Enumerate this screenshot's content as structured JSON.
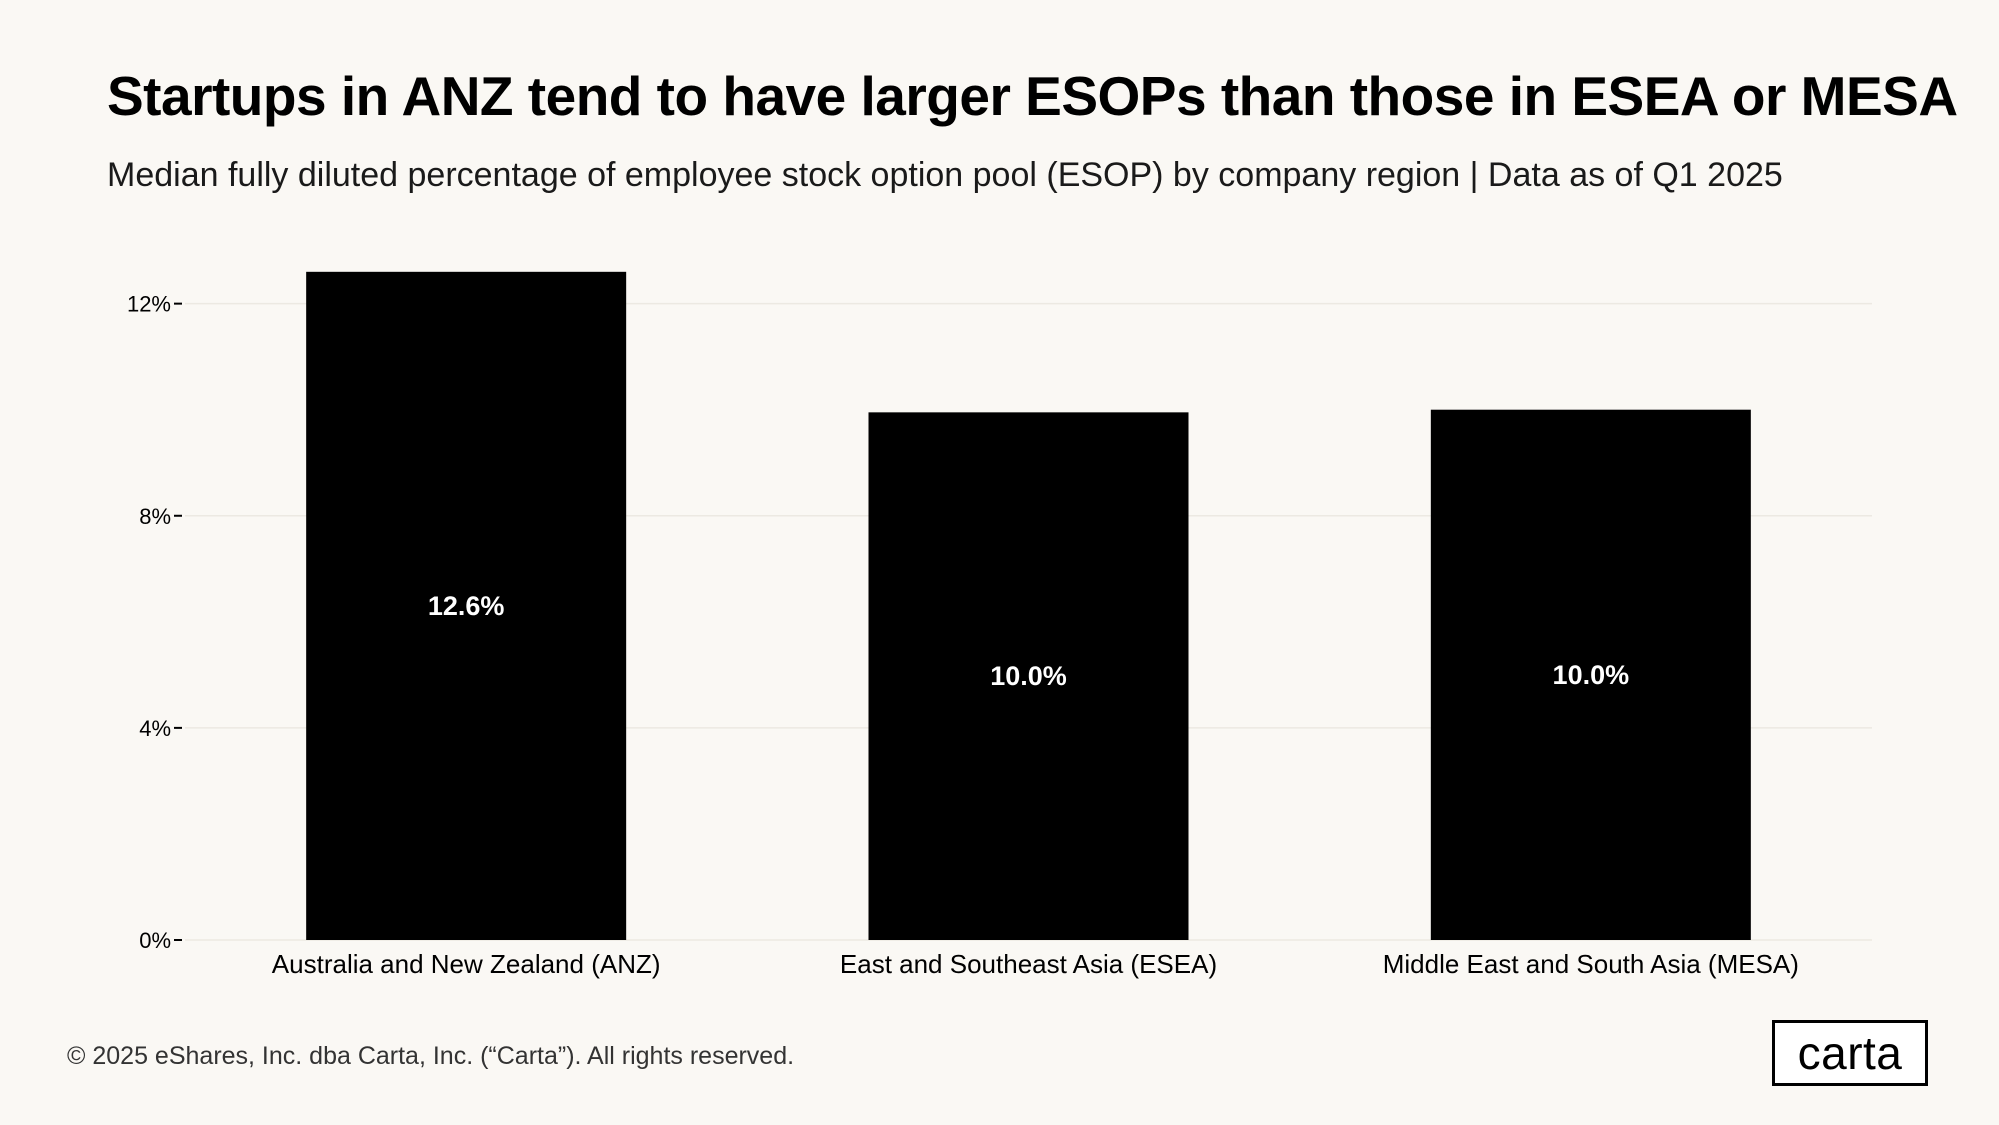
{
  "header": {
    "title": "Startups in ANZ tend to have larger ESOPs than those in ESEA or MESA",
    "subtitle": "Median fully diluted percentage of employee stock option pool (ESOP) by company region | Data as of Q1 2025"
  },
  "chart_data": {
    "type": "bar",
    "title": "Startups in ANZ tend to have larger ESOPs than those in ESEA or MESA",
    "subtitle": "Median fully diluted percentage of employee stock option pool (ESOP) by company region | Data as of Q1 2025",
    "categories": [
      "Australia and New Zealand (ANZ)",
      "East and Southeast Asia (ESEA)",
      "Middle East and South Asia (MESA)"
    ],
    "values": [
      12.6,
      9.95,
      10.0
    ],
    "data_labels": [
      "12.6%",
      "10.0%",
      "10.0%"
    ],
    "xlabel": "",
    "ylabel": "",
    "ylim": [
      0,
      13.2
    ],
    "yticks": [
      0,
      4,
      8,
      12
    ],
    "ytick_labels": [
      "0%",
      "4%",
      "8%",
      "12%"
    ],
    "grid": true,
    "colors": {
      "bar": "#000000",
      "label": "#ffffff",
      "grid": "#ece9e2",
      "axis_text": "#000000"
    }
  },
  "footer": {
    "copyright": "© 2025 eShares, Inc. dba Carta, Inc. (“Carta”). All rights reserved.",
    "logo_text": "carta"
  }
}
